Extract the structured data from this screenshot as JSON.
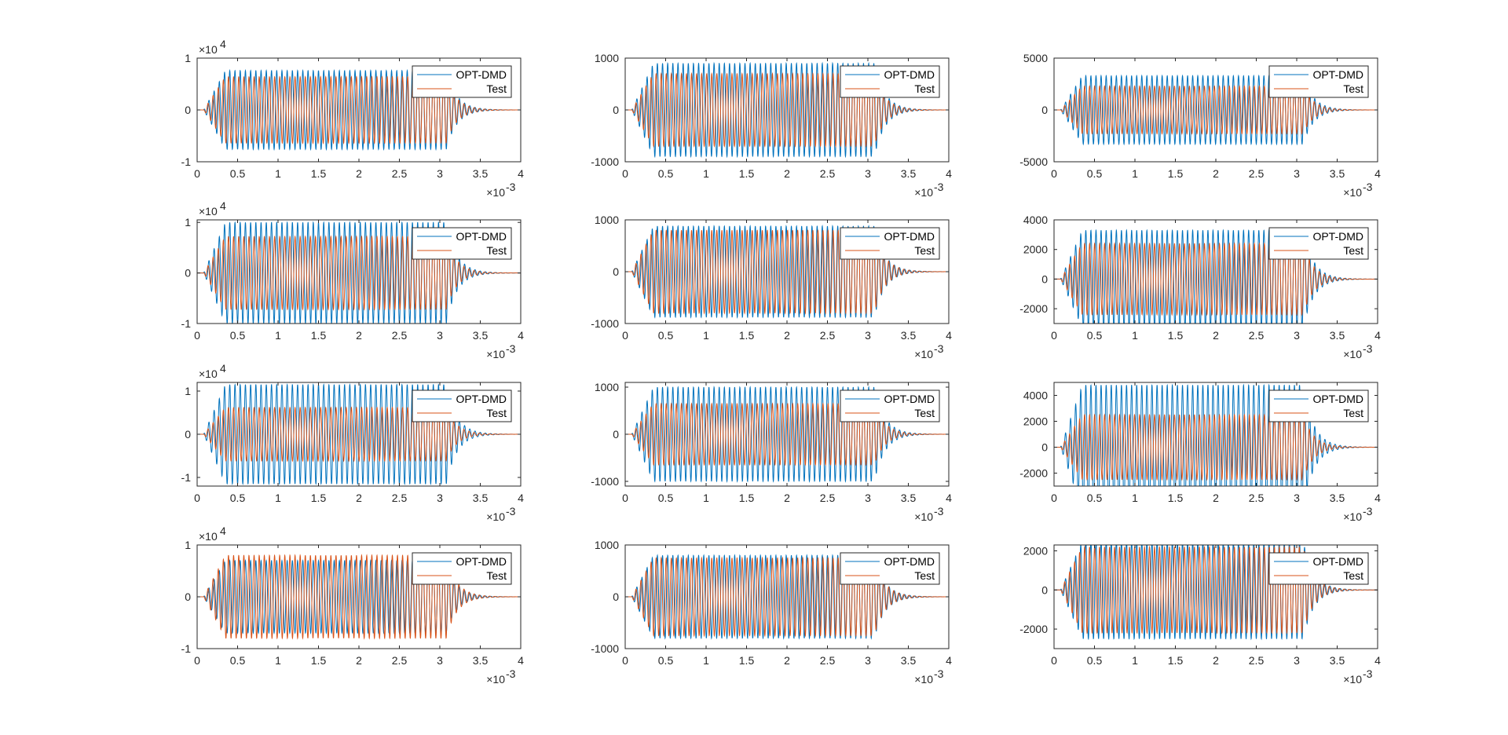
{
  "colors": {
    "opt_dmd": "#0072BD",
    "test": "#D95319",
    "axes": "#262626",
    "background": "#ffffff"
  },
  "legend_entries": [
    "OPT-DMD",
    "Test"
  ],
  "chart_data": [
    {
      "type": "line",
      "row": 0,
      "col": 0,
      "xlim": [
        0,
        4
      ],
      "x_ticks": [
        "0",
        "0.5",
        "1",
        "1.5",
        "2",
        "2.5",
        "3",
        "3.5",
        "4"
      ],
      "x_exponent": "-3",
      "ylim": [
        -1,
        1
      ],
      "y_ticks": [
        1,
        0,
        -1
      ],
      "y_tick_labels": [
        "1",
        "0",
        "-1"
      ],
      "y_exponent": "4",
      "legend": "top-right",
      "grid": false,
      "series": [
        {
          "name": "OPT-DMD",
          "color": "#0072BD",
          "peak": 0.76
        },
        {
          "name": "Test",
          "color": "#D95319",
          "peak": 0.64
        }
      ]
    },
    {
      "type": "line",
      "row": 0,
      "col": 1,
      "xlim": [
        0,
        4
      ],
      "x_ticks": [
        "0",
        "0.5",
        "1",
        "1.5",
        "2",
        "2.5",
        "3",
        "3.5",
        "4"
      ],
      "x_exponent": "-3",
      "ylim": [
        -1000,
        1000
      ],
      "y_ticks": [
        1000,
        0,
        -1000
      ],
      "y_tick_labels": [
        "1000",
        "0",
        "-1000"
      ],
      "y_exponent": "",
      "legend": "top-right",
      "grid": false,
      "series": [
        {
          "name": "OPT-DMD",
          "color": "#0072BD",
          "peak": 900
        },
        {
          "name": "Test",
          "color": "#D95319",
          "peak": 700
        }
      ]
    },
    {
      "type": "line",
      "row": 0,
      "col": 2,
      "xlim": [
        0,
        4
      ],
      "x_ticks": [
        "0",
        "0.5",
        "1",
        "1.5",
        "2",
        "2.5",
        "3",
        "3.5",
        "4"
      ],
      "x_exponent": "-3",
      "ylim": [
        -5000,
        5000
      ],
      "y_ticks": [
        5000,
        0,
        -5000
      ],
      "y_tick_labels": [
        "5000",
        "0",
        "-5000"
      ],
      "y_exponent": "",
      "legend": "top-right",
      "grid": false,
      "series": [
        {
          "name": "OPT-DMD",
          "color": "#0072BD",
          "peak": 3300
        },
        {
          "name": "Test",
          "color": "#D95319",
          "peak": 2300
        }
      ]
    },
    {
      "type": "line",
      "row": 1,
      "col": 0,
      "xlim": [
        0,
        4
      ],
      "x_ticks": [
        "0",
        "0.5",
        "1",
        "1.5",
        "2",
        "2.5",
        "3",
        "3.5",
        "4"
      ],
      "x_exponent": "-3",
      "ylim": [
        -1,
        1.05
      ],
      "y_ticks": [
        1,
        0,
        -1
      ],
      "y_tick_labels": [
        "1",
        "0",
        "-1"
      ],
      "y_exponent": "4",
      "legend": "top-right",
      "grid": false,
      "series": [
        {
          "name": "OPT-DMD",
          "color": "#0072BD",
          "peak": 1.0
        },
        {
          "name": "Test",
          "color": "#D95319",
          "peak": 0.72
        }
      ]
    },
    {
      "type": "line",
      "row": 1,
      "col": 1,
      "xlim": [
        0,
        4
      ],
      "x_ticks": [
        "0",
        "0.5",
        "1",
        "1.5",
        "2",
        "2.5",
        "3",
        "3.5",
        "4"
      ],
      "x_exponent": "-3",
      "ylim": [
        -1000,
        1000
      ],
      "y_ticks": [
        1000,
        0,
        -1000
      ],
      "y_tick_labels": [
        "1000",
        "0",
        "-1000"
      ],
      "y_exponent": "",
      "legend": "top-right",
      "grid": false,
      "series": [
        {
          "name": "OPT-DMD",
          "color": "#0072BD",
          "peak": 880
        },
        {
          "name": "Test",
          "color": "#D95319",
          "peak": 800
        }
      ]
    },
    {
      "type": "line",
      "row": 1,
      "col": 2,
      "xlim": [
        0,
        4
      ],
      "x_ticks": [
        "0",
        "0.5",
        "1",
        "1.5",
        "2",
        "2.5",
        "3",
        "3.5",
        "4"
      ],
      "x_exponent": "-3",
      "ylim": [
        -3000,
        4000
      ],
      "y_ticks": [
        4000,
        2000,
        0,
        -2000
      ],
      "y_tick_labels": [
        "4000",
        "2000",
        "0",
        "-2000"
      ],
      "y_exponent": "",
      "legend": "top-right",
      "grid": false,
      "series": [
        {
          "name": "OPT-DMD",
          "color": "#0072BD",
          "peak": 3300
        },
        {
          "name": "Test",
          "color": "#D95319",
          "peak": 2400
        }
      ]
    },
    {
      "type": "line",
      "row": 2,
      "col": 0,
      "xlim": [
        0,
        4
      ],
      "x_ticks": [
        "0",
        "0.5",
        "1",
        "1.5",
        "2",
        "2.5",
        "3",
        "3.5",
        "4"
      ],
      "x_exponent": "-3",
      "ylim": [
        -1.2,
        1.2
      ],
      "y_ticks": [
        1,
        0,
        -1
      ],
      "y_tick_labels": [
        "1",
        "0",
        "-1"
      ],
      "y_exponent": "4",
      "legend": "top-right",
      "grid": false,
      "series": [
        {
          "name": "OPT-DMD",
          "color": "#0072BD",
          "peak": 1.15
        },
        {
          "name": "Test",
          "color": "#D95319",
          "peak": 0.62
        }
      ]
    },
    {
      "type": "line",
      "row": 2,
      "col": 1,
      "xlim": [
        0,
        4
      ],
      "x_ticks": [
        "0",
        "0.5",
        "1",
        "1.5",
        "2",
        "2.5",
        "3",
        "3.5",
        "4"
      ],
      "x_exponent": "-3",
      "ylim": [
        -1100,
        1100
      ],
      "y_ticks": [
        1000,
        0,
        -1000
      ],
      "y_tick_labels": [
        "1000",
        "0",
        "-1000"
      ],
      "y_exponent": "",
      "legend": "top-right",
      "grid": false,
      "series": [
        {
          "name": "OPT-DMD",
          "color": "#0072BD",
          "peak": 1000
        },
        {
          "name": "Test",
          "color": "#D95319",
          "peak": 650
        }
      ]
    },
    {
      "type": "line",
      "row": 2,
      "col": 2,
      "xlim": [
        0,
        4
      ],
      "x_ticks": [
        "0",
        "0.5",
        "1",
        "1.5",
        "2",
        "2.5",
        "3",
        "3.5",
        "4"
      ],
      "x_exponent": "-3",
      "ylim": [
        -3000,
        5000
      ],
      "y_ticks": [
        4000,
        2000,
        0,
        -2000
      ],
      "y_tick_labels": [
        "4000",
        "2000",
        "0",
        "-2000"
      ],
      "y_exponent": "",
      "legend": "top-right",
      "grid": false,
      "series": [
        {
          "name": "OPT-DMD",
          "color": "#0072BD",
          "peak": 4800
        },
        {
          "name": "Test",
          "color": "#D95319",
          "peak": 2500
        }
      ]
    },
    {
      "type": "line",
      "row": 3,
      "col": 0,
      "xlim": [
        0,
        4
      ],
      "x_ticks": [
        "0",
        "0.5",
        "1",
        "1.5",
        "2",
        "2.5",
        "3",
        "3.5",
        "4"
      ],
      "x_exponent": "-3",
      "ylim": [
        -1,
        1
      ],
      "y_ticks": [
        1,
        0,
        -1
      ],
      "y_tick_labels": [
        "1",
        "0",
        "-1"
      ],
      "y_exponent": "4",
      "legend": "top-right",
      "grid": false,
      "series": [
        {
          "name": "OPT-DMD",
          "color": "#0072BD",
          "peak": 0.7
        },
        {
          "name": "Test",
          "color": "#D95319",
          "peak": 0.8
        }
      ]
    },
    {
      "type": "line",
      "row": 3,
      "col": 1,
      "xlim": [
        0,
        4
      ],
      "x_ticks": [
        "0",
        "0.5",
        "1",
        "1.5",
        "2",
        "2.5",
        "3",
        "3.5",
        "4"
      ],
      "x_exponent": "-3",
      "ylim": [
        -1000,
        1000
      ],
      "y_ticks": [
        1000,
        0,
        -1000
      ],
      "y_tick_labels": [
        "1000",
        "0",
        "-1000"
      ],
      "y_exponent": "",
      "legend": "top-right",
      "grid": false,
      "series": [
        {
          "name": "OPT-DMD",
          "color": "#0072BD",
          "peak": 800
        },
        {
          "name": "Test",
          "color": "#D95319",
          "peak": 750
        }
      ]
    },
    {
      "type": "line",
      "row": 3,
      "col": 2,
      "xlim": [
        0,
        4
      ],
      "x_ticks": [
        "0",
        "0.5",
        "1",
        "1.5",
        "2",
        "2.5",
        "3",
        "3.5",
        "4"
      ],
      "x_exponent": "-3",
      "ylim": [
        -3000,
        2300
      ],
      "y_ticks": [
        2000,
        0,
        -2000
      ],
      "y_tick_labels": [
        "2000",
        "0",
        "-2000"
      ],
      "y_exponent": "",
      "legend": "top-right",
      "grid": false,
      "series": [
        {
          "name": "OPT-DMD",
          "color": "#0072BD",
          "peak": 2500
        },
        {
          "name": "Test",
          "color": "#D95319",
          "peak": 2200
        }
      ]
    }
  ]
}
